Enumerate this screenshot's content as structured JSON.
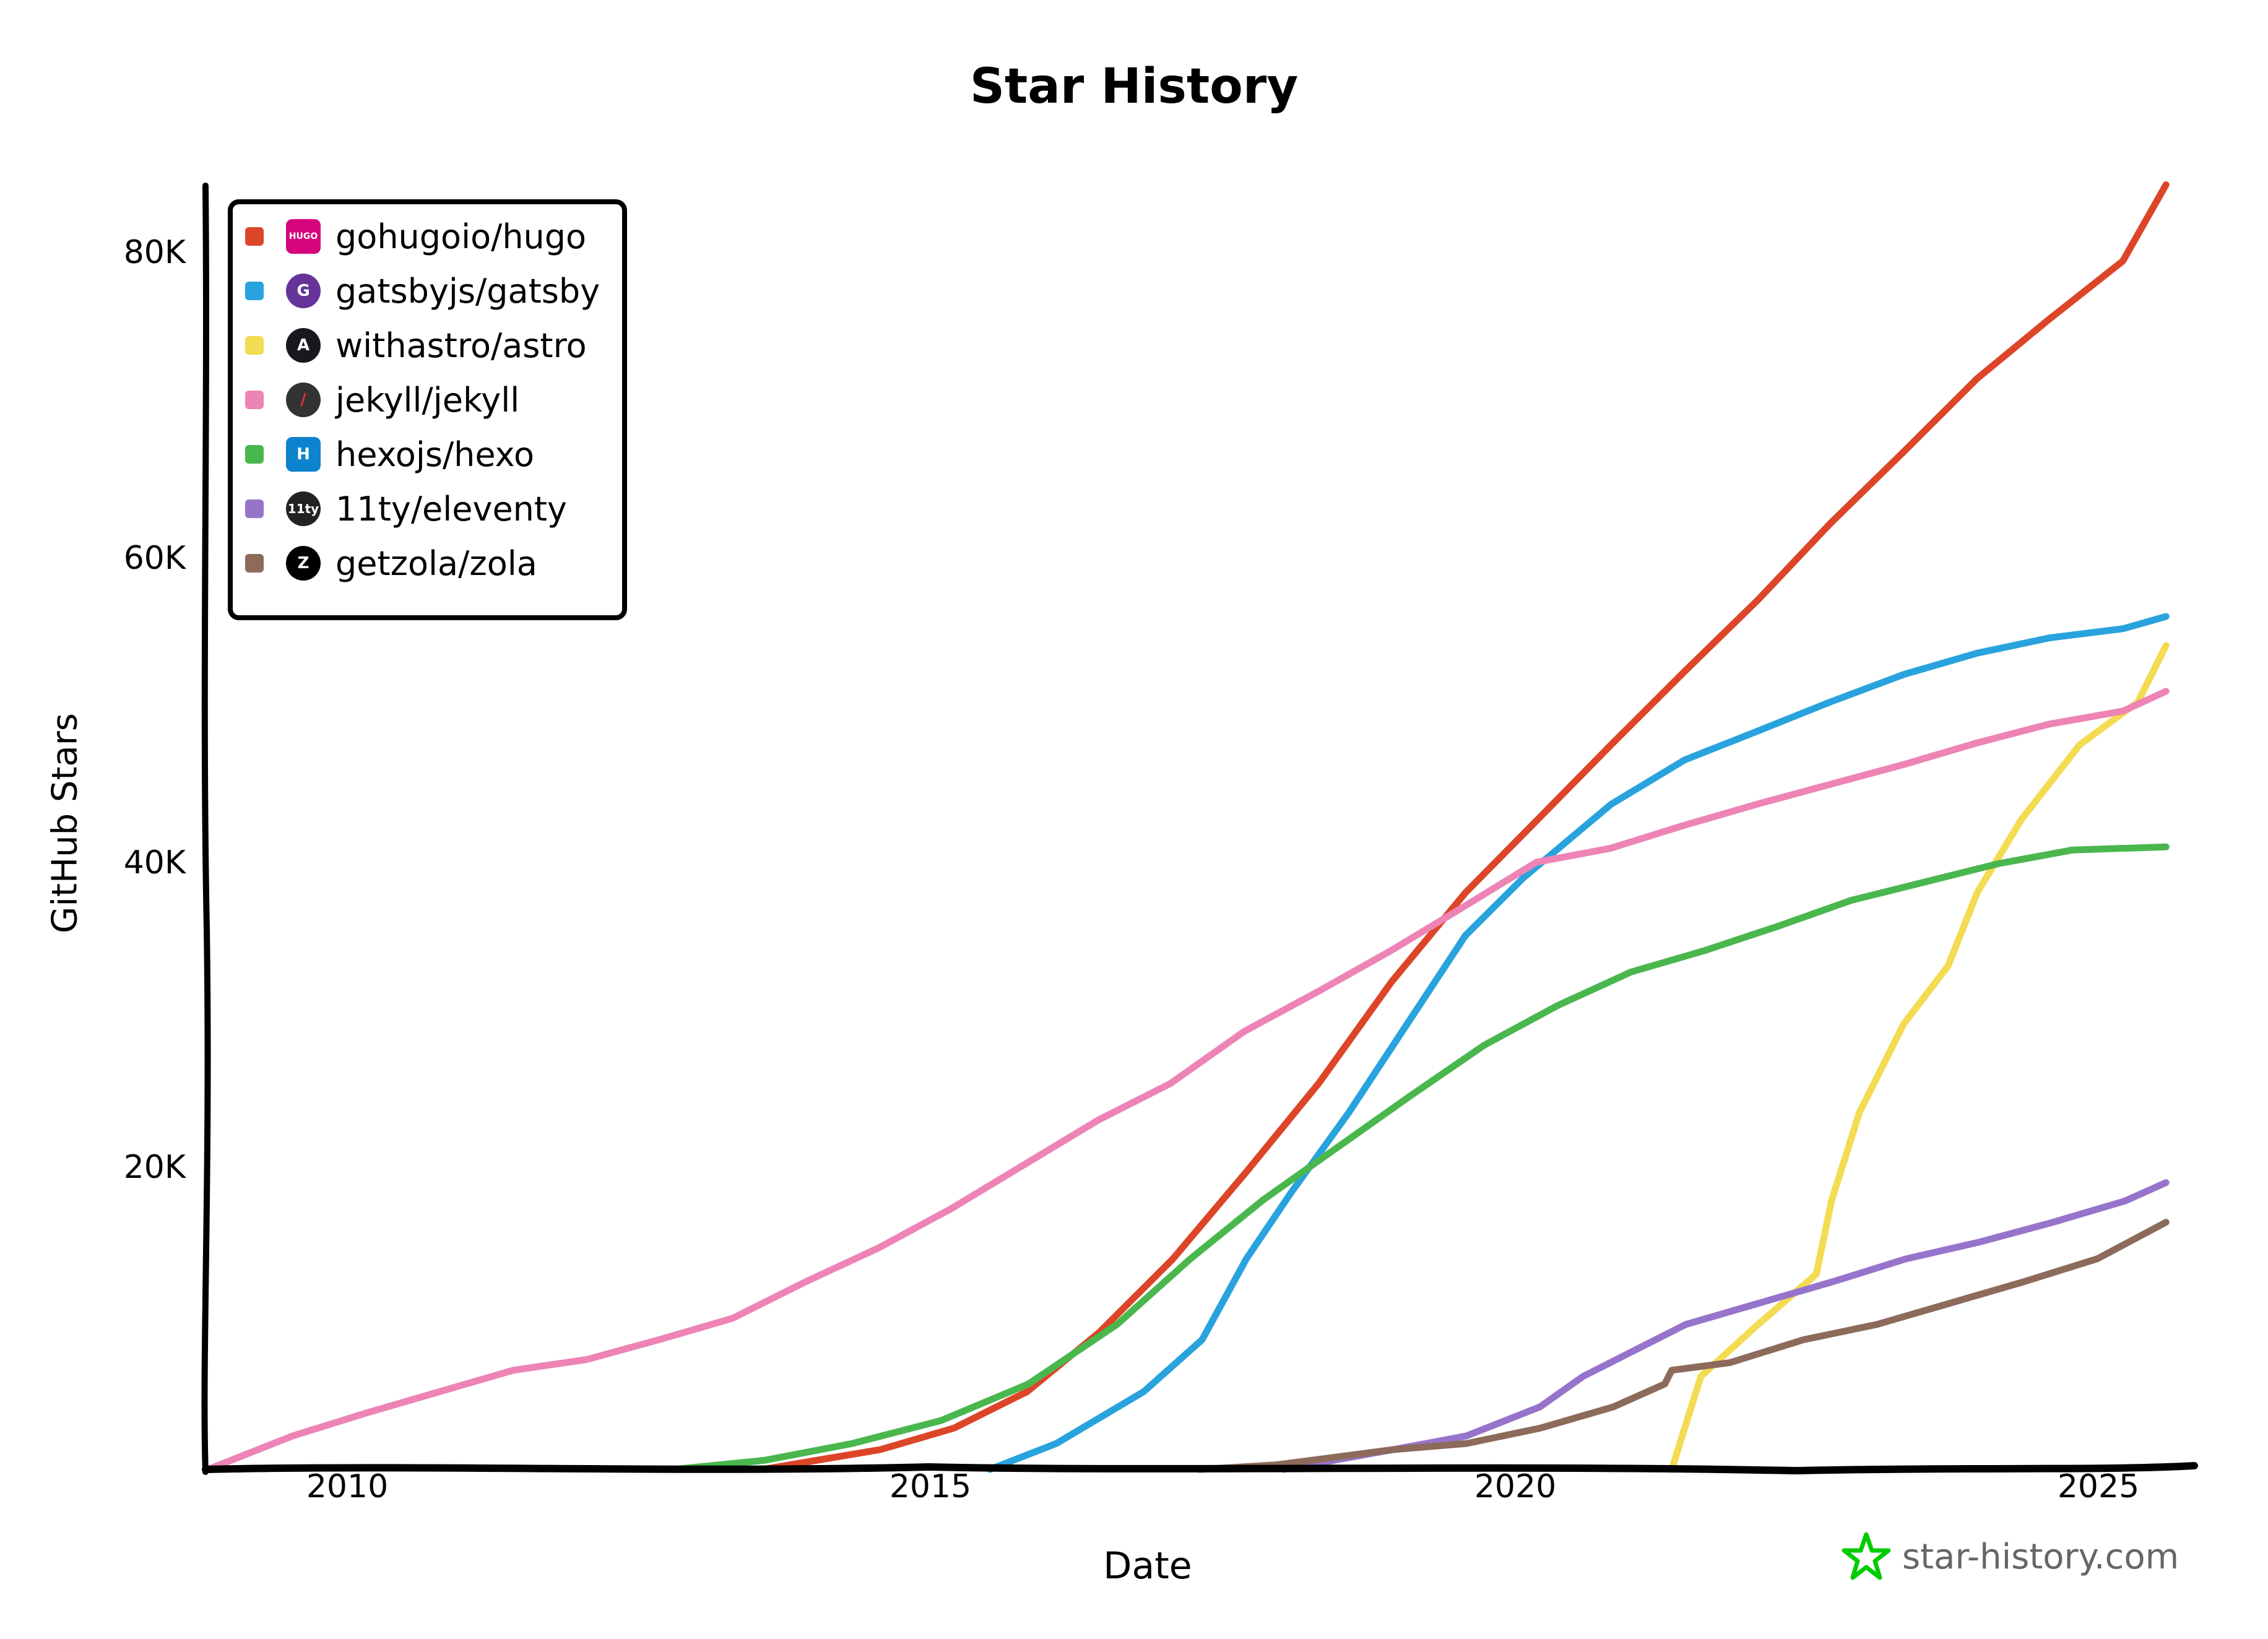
{
  "header": {
    "title": "Star History"
  },
  "axes": {
    "xlabel": "Date",
    "ylabel": "GitHub Stars",
    "xticks": [
      "2010",
      "2015",
      "2020",
      "2025"
    ],
    "yticks": [
      "20K",
      "40K",
      "60K",
      "80K"
    ]
  },
  "watermark": {
    "text": "star-history.com",
    "icon": "star-outline-icon",
    "color": "#00cc00"
  },
  "legend": {
    "items": [
      {
        "label": "gohugoio/hugo",
        "color": "#dd4528",
        "logo": "HUGO",
        "logo_bg": "#d6047c"
      },
      {
        "label": "gatsbyjs/gatsby",
        "color": "#28a3dd",
        "logo": "G",
        "logo_bg": "#663399"
      },
      {
        "label": "withastro/astro",
        "color": "#f3db52",
        "logo": "A",
        "logo_bg": "#17191e"
      },
      {
        "label": "jekyll/jekyll",
        "color": "#ed84b5",
        "logo": "/",
        "logo_bg": "#333333"
      },
      {
        "label": "hexojs/hexo",
        "color": "#4ab74e",
        "logo": "H",
        "logo_bg": "#0e83cd"
      },
      {
        "label": "11ty/eleventy",
        "color": "#9774cb",
        "logo": "11ty",
        "logo_bg": "#222222"
      },
      {
        "label": "getzola/zola",
        "color": "#8c6b5b",
        "logo": "Z",
        "logo_bg": "#000000"
      }
    ]
  },
  "chart_data": {
    "type": "line",
    "title": "Star History",
    "xlabel": "Date",
    "ylabel": "GitHub Stars",
    "xlim": [
      2008.8,
      2025.6
    ],
    "ylim": [
      0,
      84000
    ],
    "xticks": [
      2010,
      2015,
      2020,
      2025
    ],
    "yticks": [
      20000,
      40000,
      60000,
      80000
    ],
    "grid": false,
    "legend_position": "top-left",
    "series": [
      {
        "name": "gohugoio/hugo",
        "color": "#dd4528",
        "x": [
          2013.56,
          2014.57,
          2015.2,
          2015.83,
          2016.45,
          2017.08,
          2017.71,
          2018.33,
          2018.96,
          2019.59,
          2020.21,
          2020.84,
          2021.47,
          2022.1,
          2022.72,
          2023.35,
          2023.98,
          2024.6,
          2025.23,
          2025.6
        ],
        "y": [
          0,
          1300,
          2700,
          5100,
          9000,
          13800,
          19500,
          25300,
          32000,
          37800,
          42600,
          47500,
          52300,
          57000,
          62000,
          66700,
          71500,
          75400,
          79200,
          84200
        ]
      },
      {
        "name": "gatsbyjs/gatsby",
        "color": "#28a3dd",
        "x": [
          2015.51,
          2016.08,
          2016.83,
          2017.33,
          2017.71,
          2018.09,
          2018.59,
          2019.09,
          2019.59,
          2020.09,
          2020.84,
          2021.47,
          2022.1,
          2022.72,
          2023.35,
          2023.98,
          2024.6,
          2025.23,
          2025.6
        ],
        "y": [
          0,
          1700,
          5100,
          8500,
          13800,
          18100,
          23400,
          29200,
          35000,
          38800,
          43600,
          46500,
          48400,
          50300,
          52100,
          53500,
          54500,
          55100,
          55900
        ]
      },
      {
        "name": "withastro/astro",
        "color": "#f3db52",
        "x": [
          2021.36,
          2021.61,
          2022.1,
          2022.6,
          2022.73,
          2022.97,
          2023.35,
          2023.73,
          2023.98,
          2024.36,
          2024.86,
          2025.36,
          2025.6
        ],
        "y": [
          0,
          6100,
          9500,
          12800,
          17600,
          23400,
          29200,
          33000,
          37800,
          42600,
          47500,
          50300,
          54000
        ]
      },
      {
        "name": "jekyll/jekyll",
        "color": "#ed84b5",
        "x": [
          2008.8,
          2009.53,
          2010.16,
          2010.79,
          2011.42,
          2012.05,
          2012.67,
          2013.3,
          2013.93,
          2014.55,
          2015.18,
          2015.81,
          2016.44,
          2017.06,
          2017.69,
          2018.32,
          2018.95,
          2019.58,
          2020.2,
          2020.83,
          2021.46,
          2022.09,
          2022.72,
          2023.35,
          2023.97,
          2024.6,
          2025.23,
          2025.6
        ],
        "y": [
          0,
          2200,
          3700,
          5100,
          6500,
          7200,
          8500,
          9900,
          12300,
          14500,
          17100,
          20000,
          22900,
          25300,
          28700,
          31300,
          34000,
          36900,
          39800,
          40700,
          42200,
          43600,
          44900,
          46200,
          47600,
          48850,
          49700,
          51000
        ]
      },
      {
        "name": "hexojs/hexo",
        "color": "#4ab74e",
        "x": [
          2012.8,
          2013.58,
          2014.33,
          2015.09,
          2015.84,
          2016.6,
          2017.23,
          2017.86,
          2018.49,
          2019.12,
          2019.75,
          2020.38,
          2021.01,
          2021.64,
          2022.27,
          2022.9,
          2023.53,
          2024.16,
          2024.8,
          2025.6
        ],
        "y": [
          0,
          600,
          1700,
          3200,
          5600,
          9500,
          13800,
          17700,
          21100,
          24500,
          27800,
          30400,
          32600,
          34000,
          35600,
          37300,
          38500,
          39700,
          40600,
          40800
        ]
      },
      {
        "name": "11ty/eleventy",
        "color": "#9774cb",
        "x": [
          2018.03,
          2018.97,
          2019.6,
          2020.23,
          2020.6,
          2021.48,
          2022.11,
          2022.74,
          2023.37,
          2024.0,
          2024.63,
          2025.25,
          2025.6
        ],
        "y": [
          0,
          1300,
          2200,
          4100,
          6100,
          9500,
          10900,
          12300,
          13800,
          14900,
          16200,
          17600,
          18800
        ]
      },
      {
        "name": "getzola/zola",
        "color": "#8c6b5b",
        "x": [
          2017.31,
          2017.97,
          2018.97,
          2019.6,
          2020.23,
          2020.86,
          2021.3,
          2021.36,
          2021.86,
          2022.49,
          2023.12,
          2023.75,
          2024.38,
          2025.01,
          2025.6
        ],
        "y": [
          0,
          300,
          1300,
          1700,
          2700,
          4100,
          5600,
          6500,
          7000,
          8500,
          9500,
          10900,
          12300,
          13800,
          16200
        ]
      }
    ]
  }
}
